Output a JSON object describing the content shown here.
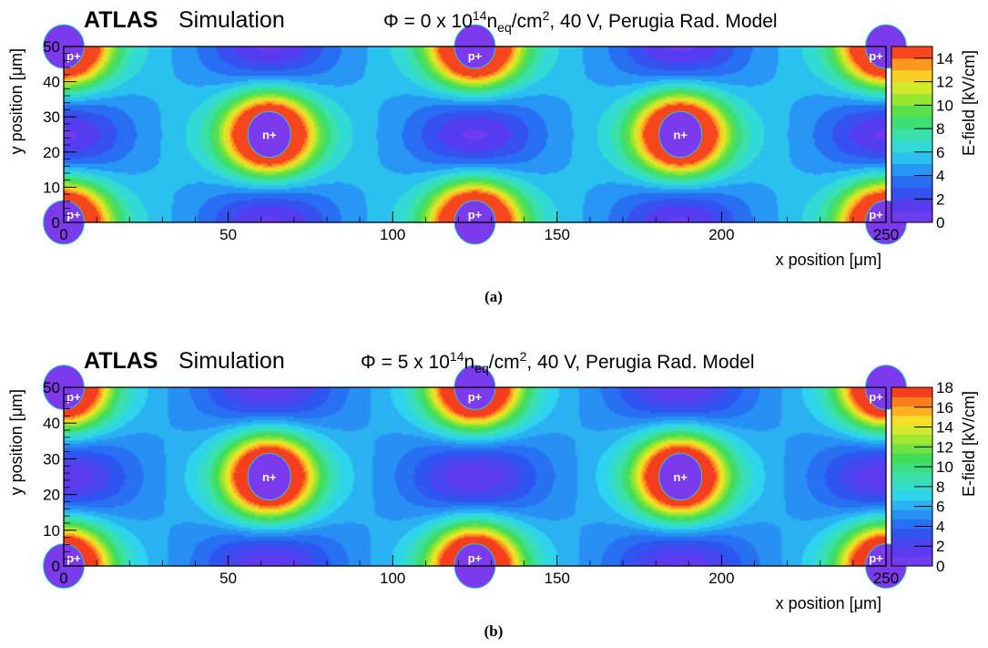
{
  "chart_data": [
    {
      "type": "heatmap",
      "experiment": "ATLAS",
      "tag": "Simulation",
      "title": {
        "phi": "Φ = 0 x 10",
        "exponent": "14",
        "unit_base": "n",
        "unit_sub": "eq",
        "unit_mid": "/cm",
        "unit_sup": "2",
        "rest": ", 40 V, Perugia Rad. Model"
      },
      "xlabel": "x position [μm]",
      "ylabel": "y position [μm]",
      "zlabel": "E-field [kV/cm]",
      "xlim": [
        0,
        250
      ],
      "ylim": [
        0,
        50
      ],
      "zlim": [
        0,
        15
      ],
      "x_ticks": [
        0,
        50,
        100,
        150,
        200,
        250
      ],
      "y_ticks": [
        0,
        10,
        20,
        30,
        40,
        50
      ],
      "z_ticks": [
        0,
        2,
        4,
        6,
        8,
        10,
        12,
        14
      ],
      "field_min_kv_cm": 0,
      "field_max_kv_cm": 15,
      "electrodes": [
        {
          "label": "p+",
          "x": 0,
          "y": 50
        },
        {
          "label": "p+",
          "x": 0,
          "y": 0
        },
        {
          "label": "p+",
          "x": 125,
          "y": 50
        },
        {
          "label": "p+",
          "x": 125,
          "y": 0
        },
        {
          "label": "p+",
          "x": 250,
          "y": 50
        },
        {
          "label": "p+",
          "x": 250,
          "y": 0
        },
        {
          "label": "n+",
          "x": 62.5,
          "y": 25
        },
        {
          "label": "n+",
          "x": 187.5,
          "y": 25
        }
      ],
      "caption": "(a)"
    },
    {
      "type": "heatmap",
      "experiment": "ATLAS",
      "tag": "Simulation",
      "title": {
        "phi": "Φ = 5 x 10",
        "exponent": "14",
        "unit_base": "n",
        "unit_sub": "eq",
        "unit_mid": "/cm",
        "unit_sup": "2",
        "rest": ", 40 V, Perugia Rad. Model"
      },
      "xlabel": "x position [μm]",
      "ylabel": "y position [μm]",
      "zlabel": "E-field [kV/cm]",
      "xlim": [
        0,
        250
      ],
      "ylim": [
        0,
        50
      ],
      "zlim": [
        0,
        18
      ],
      "x_ticks": [
        0,
        50,
        100,
        150,
        200,
        250
      ],
      "y_ticks": [
        0,
        10,
        20,
        30,
        40,
        50
      ],
      "z_ticks": [
        0,
        2,
        4,
        6,
        8,
        10,
        12,
        14,
        16,
        18
      ],
      "field_min_kv_cm": 0,
      "field_max_kv_cm": 18,
      "electrodes": [
        {
          "label": "p+",
          "x": 0,
          "y": 50
        },
        {
          "label": "p+",
          "x": 0,
          "y": 0
        },
        {
          "label": "p+",
          "x": 125,
          "y": 50
        },
        {
          "label": "p+",
          "x": 125,
          "y": 0
        },
        {
          "label": "p+",
          "x": 250,
          "y": 50
        },
        {
          "label": "p+",
          "x": 250,
          "y": 0
        },
        {
          "label": "n+",
          "x": 62.5,
          "y": 25
        },
        {
          "label": "n+",
          "x": 187.5,
          "y": 25
        }
      ],
      "caption": "(b)"
    }
  ]
}
